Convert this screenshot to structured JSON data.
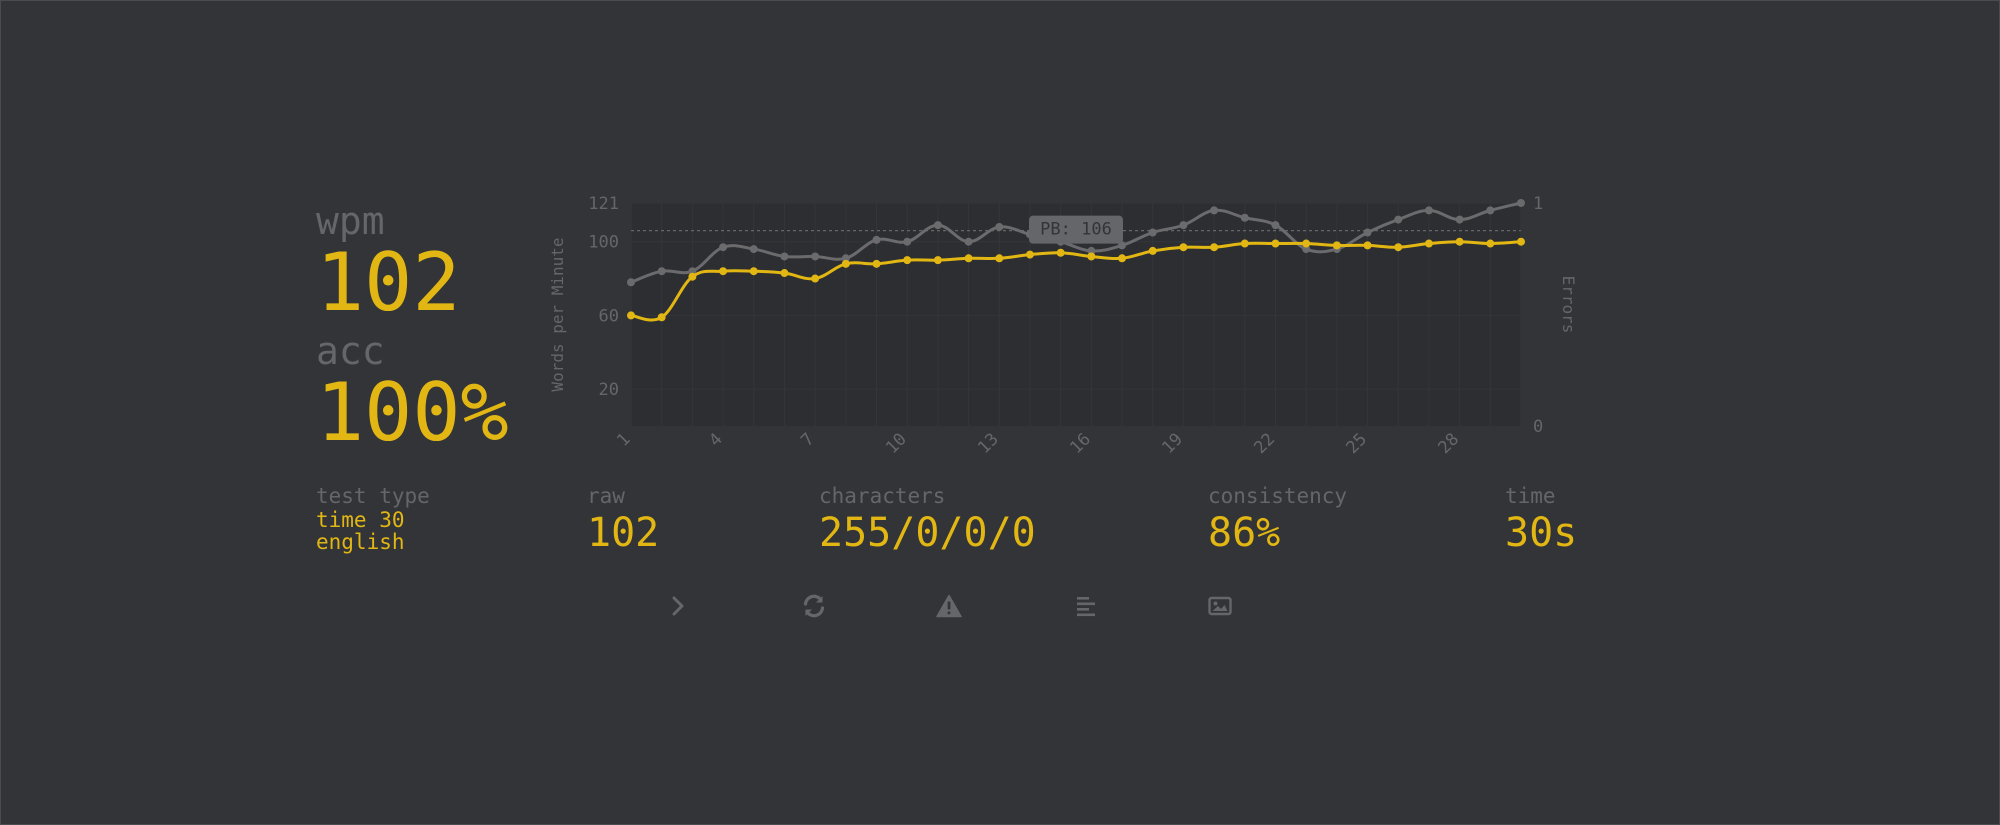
{
  "stats": {
    "wpm_label": "wpm",
    "wpm_value": "102",
    "acc_label": "acc",
    "acc_value": "100%"
  },
  "details": {
    "test_type_label": "test type",
    "test_type_line1": "time 30",
    "test_type_line2": "english",
    "raw_label": "raw",
    "raw_value": "102",
    "characters_label": "characters",
    "characters_value": "255/0/0/0",
    "consistency_label": "consistency",
    "consistency_value": "86%",
    "time_label": "time",
    "time_value": "30s"
  },
  "actions": [
    {
      "name": "next-test",
      "icon": "chevron-right-icon"
    },
    {
      "name": "restart-test",
      "icon": "sync-icon"
    },
    {
      "name": "report-words",
      "icon": "warning-icon"
    },
    {
      "name": "word-history",
      "icon": "align-left-icon"
    },
    {
      "name": "save-screenshot",
      "icon": "image-icon"
    }
  ],
  "colors": {
    "background": "#323437",
    "accent": "#e2b714",
    "sub": "#646669",
    "raw_line": "#6b6b6e"
  },
  "chart_data": {
    "type": "line",
    "ylabel": "Words per Minute",
    "y2label": "Errors",
    "ylim": [
      0,
      121
    ],
    "y_ticks": [
      20,
      60,
      100,
      121
    ],
    "y2lim": [
      0,
      1
    ],
    "y2_ticks": [
      0,
      1
    ],
    "x_ticks": [
      1,
      4,
      7,
      10,
      13,
      16,
      19,
      22,
      25,
      28
    ],
    "x": [
      1,
      2,
      3,
      4,
      5,
      6,
      7,
      8,
      9,
      10,
      11,
      12,
      13,
      14,
      15,
      16,
      17,
      18,
      19,
      20,
      21,
      22,
      23,
      24,
      25,
      26,
      27,
      28,
      29,
      30
    ],
    "series": [
      {
        "role": "wpm",
        "color": "#e2b714",
        "values": [
          60,
          59,
          81,
          84,
          84,
          83,
          80,
          88,
          88,
          90,
          90,
          91,
          91,
          93,
          94,
          92,
          91,
          95,
          97,
          97,
          99,
          99,
          99,
          98,
          98,
          97,
          99,
          100,
          99,
          100
        ]
      },
      {
        "role": "raw",
        "color": "#6b6b6e",
        "values": [
          78,
          84,
          84,
          97,
          96,
          92,
          92,
          91,
          101,
          100,
          109,
          100,
          108,
          104,
          100,
          95,
          98,
          105,
          109,
          117,
          113,
          109,
          96,
          96,
          105,
          112,
          117,
          112,
          117,
          121
        ]
      }
    ],
    "pb_line": {
      "value": 106,
      "label": "PB: 106"
    },
    "grid": true
  }
}
